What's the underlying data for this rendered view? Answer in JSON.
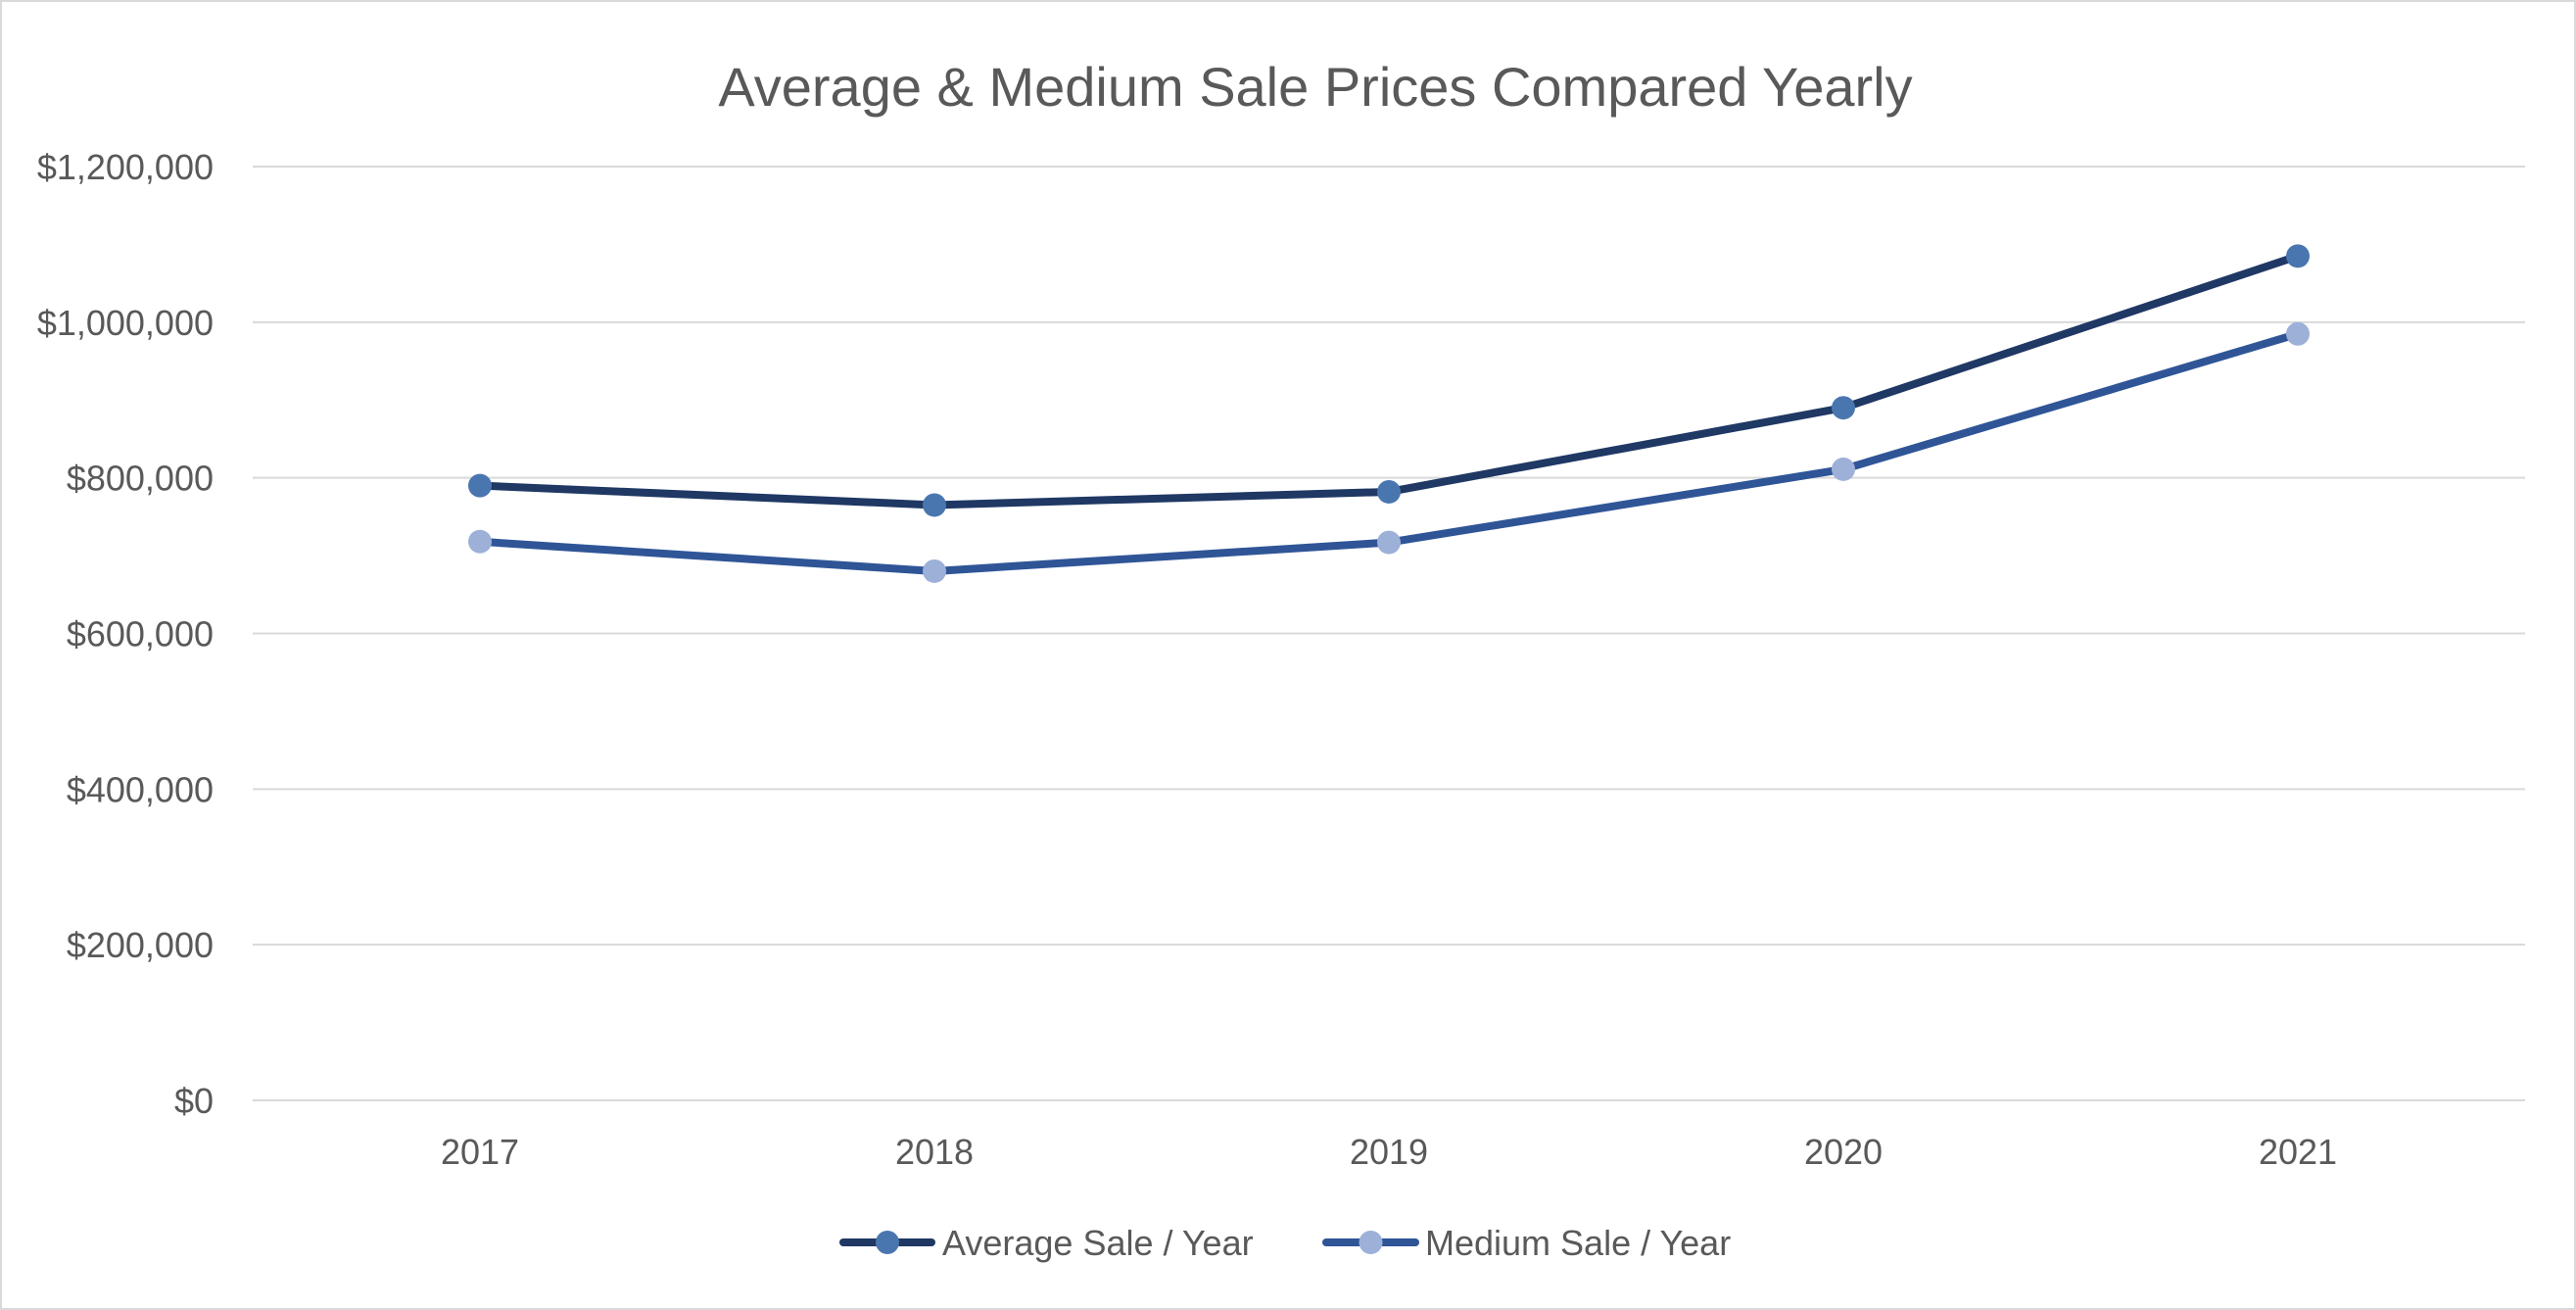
{
  "chart_data": {
    "type": "line",
    "title": "Average & Medium Sale Prices Compared Yearly",
    "xlabel": "",
    "ylabel": "",
    "categories": [
      "2017",
      "2018",
      "2019",
      "2020",
      "2021"
    ],
    "ylim": [
      0,
      1200000
    ],
    "y_ticks": [
      0,
      200000,
      400000,
      600000,
      800000,
      1000000,
      1200000
    ],
    "y_tick_labels": [
      "$0",
      "$200,000",
      "$400,000",
      "$600,000",
      "$800,000",
      "$1,000,000",
      "$1,200,000"
    ],
    "grid": true,
    "legend_position": "bottom",
    "series": [
      {
        "name": "Average Sale / Year",
        "values": [
          790000,
          765000,
          782000,
          890000,
          1085000
        ],
        "line_color": "#1f3864",
        "marker_color": "#4a76b0"
      },
      {
        "name": "Medium Sale / Year",
        "values": [
          718000,
          680000,
          717000,
          811000,
          985000
        ],
        "line_color": "#2f5597",
        "marker_color": "#9db0d8"
      }
    ]
  }
}
